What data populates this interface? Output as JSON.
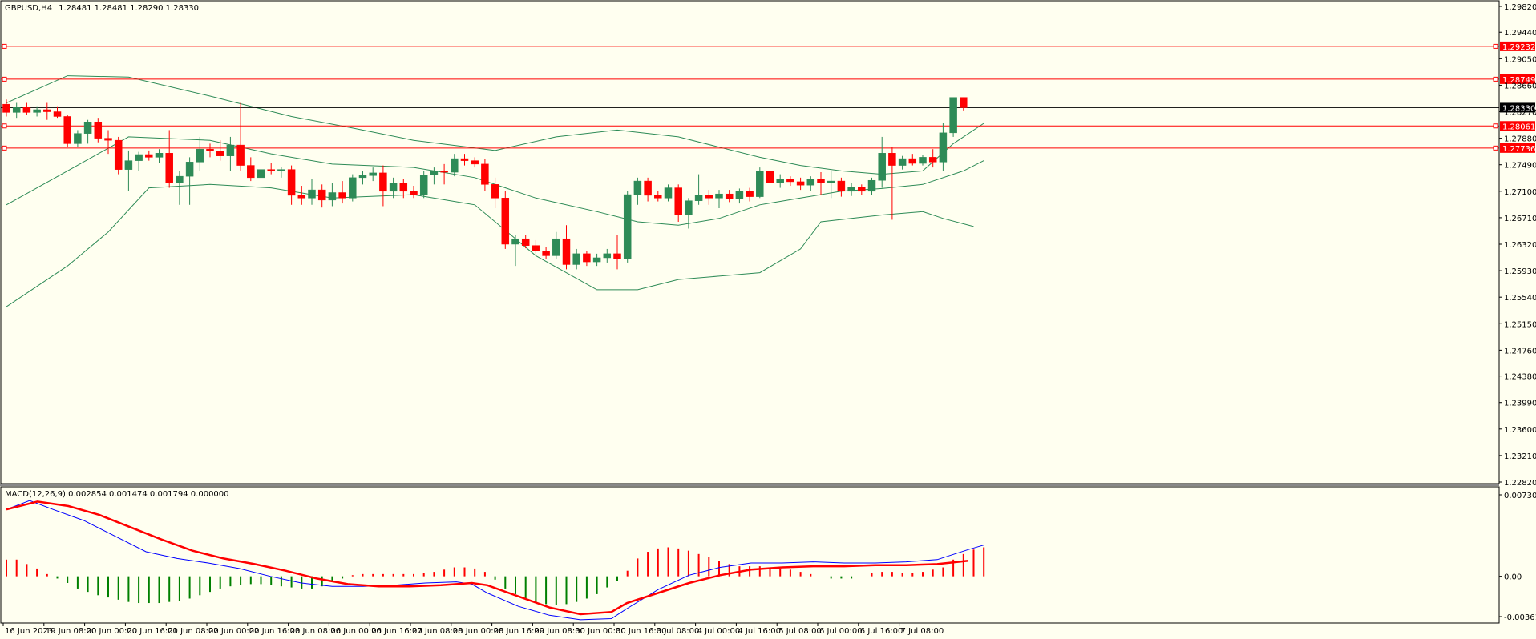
{
  "header": {
    "symbol": "GBPUSD,H4",
    "ohlc": "1.28481 1.28481 1.28290 1.28330"
  },
  "colors": {
    "background": "#fffff0",
    "bull": "#2e8b57",
    "bear": "#ff0000",
    "band": "#2e8b57",
    "level_line": "#ff0000",
    "price_line": "#000000",
    "macd_main": "#0000ff",
    "macd_signal": "#ff0000"
  },
  "chart_data": {
    "type": "candlestick",
    "symbol": "GBPUSD",
    "timeframe": "H4",
    "price_axis": {
      "ylim": [
        1.2282,
        1.2982
      ],
      "ticks": [
        "1.29820",
        "1.29440",
        "1.29050",
        "1.28660",
        "1.28270",
        "1.27880",
        "1.27490",
        "1.27100",
        "1.26710",
        "1.26320",
        "1.25930",
        "1.25540",
        "1.25150",
        "1.24760",
        "1.24380",
        "1.23990",
        "1.23600",
        "1.23210",
        "1.22820"
      ]
    },
    "time_labels": [
      {
        "label": "16 Jun 2023",
        "index": 0
      },
      {
        "label": "19 Jun 08:00",
        "index": 4
      },
      {
        "label": "20 Jun 00:00",
        "index": 8
      },
      {
        "label": "20 Jun 16:00",
        "index": 12
      },
      {
        "label": "21 Jun 08:00",
        "index": 16
      },
      {
        "label": "22 Jun 00:00",
        "index": 20
      },
      {
        "label": "22 Jun 16:00",
        "index": 24
      },
      {
        "label": "23 Jun 08:00",
        "index": 28
      },
      {
        "label": "26 Jun 00:00",
        "index": 32
      },
      {
        "label": "26 Jun 16:00",
        "index": 36
      },
      {
        "label": "27 Jun 08:00",
        "index": 40
      },
      {
        "label": "28 Jun 00:00",
        "index": 44
      },
      {
        "label": "28 Jun 16:00",
        "index": 48
      },
      {
        "label": "29 Jun 08:00",
        "index": 52
      },
      {
        "label": "30 Jun 00:00",
        "index": 56
      },
      {
        "label": "30 Jun 16:00",
        "index": 60
      },
      {
        "label": "3 Jul 08:00",
        "index": 64
      },
      {
        "label": "4 Jul 00:00",
        "index": 68
      },
      {
        "label": "4 Jul 16:00",
        "index": 72
      },
      {
        "label": "5 Jul 08:00",
        "index": 76
      },
      {
        "label": "6 Jul 00:00",
        "index": 80
      },
      {
        "label": "6 Jul 16:00",
        "index": 84
      },
      {
        "label": "7 Jul 08:00",
        "index": 88
      }
    ],
    "candles": [
      [
        1.2838,
        1.2845,
        1.282,
        1.2826
      ],
      [
        1.2826,
        1.284,
        1.2818,
        1.2834
      ],
      [
        1.2834,
        1.284,
        1.2822,
        1.2826
      ],
      [
        1.2826,
        1.2835,
        1.282,
        1.283
      ],
      [
        1.283,
        1.284,
        1.2815,
        1.2827
      ],
      [
        1.2827,
        1.2835,
        1.2818,
        1.282
      ],
      [
        1.282,
        1.2822,
        1.2775,
        1.278
      ],
      [
        1.278,
        1.28,
        1.2775,
        1.2795
      ],
      [
        1.2795,
        1.2815,
        1.278,
        1.2812
      ],
      [
        1.2812,
        1.2818,
        1.2782,
        1.2788
      ],
      [
        1.2788,
        1.28,
        1.2765,
        1.2785
      ],
      [
        1.2785,
        1.279,
        1.2735,
        1.2742
      ],
      [
        1.2742,
        1.277,
        1.271,
        1.2755
      ],
      [
        1.2755,
        1.2768,
        1.274,
        1.2764
      ],
      [
        1.2764,
        1.277,
        1.2755,
        1.276
      ],
      [
        1.276,
        1.2772,
        1.2752,
        1.2766
      ],
      [
        1.2766,
        1.28,
        1.2715,
        1.2722
      ],
      [
        1.2722,
        1.274,
        1.269,
        1.2732
      ],
      [
        1.2732,
        1.276,
        1.269,
        1.2753
      ],
      [
        1.2753,
        1.279,
        1.274,
        1.2772
      ],
      [
        1.2772,
        1.278,
        1.276,
        1.2769
      ],
      [
        1.2769,
        1.2785,
        1.2755,
        1.2762
      ],
      [
        1.2762,
        1.279,
        1.274,
        1.2778
      ],
      [
        1.2778,
        1.284,
        1.274,
        1.2748
      ],
      [
        1.2748,
        1.276,
        1.2725,
        1.273
      ],
      [
        1.273,
        1.2748,
        1.2725,
        1.2742
      ],
      [
        1.2742,
        1.2752,
        1.2735,
        1.274
      ],
      [
        1.274,
        1.2746,
        1.273,
        1.2742
      ],
      [
        1.2742,
        1.2748,
        1.269,
        1.2704
      ],
      [
        1.2704,
        1.2718,
        1.269,
        1.27
      ],
      [
        1.27,
        1.2728,
        1.269,
        1.2712
      ],
      [
        1.2712,
        1.272,
        1.2686,
        1.2697
      ],
      [
        1.2697,
        1.2722,
        1.2688,
        1.2708
      ],
      [
        1.2708,
        1.2725,
        1.2692,
        1.27
      ],
      [
        1.27,
        1.2735,
        1.2695,
        1.273
      ],
      [
        1.273,
        1.274,
        1.272,
        1.2733
      ],
      [
        1.2733,
        1.2745,
        1.2725,
        1.2737
      ],
      [
        1.2737,
        1.2748,
        1.2688,
        1.271
      ],
      [
        1.271,
        1.273,
        1.27,
        1.2722
      ],
      [
        1.2722,
        1.2728,
        1.27,
        1.271
      ],
      [
        1.271,
        1.2718,
        1.27,
        1.2705
      ],
      [
        1.2705,
        1.274,
        1.27,
        1.2734
      ],
      [
        1.2734,
        1.2745,
        1.272,
        1.274
      ],
      [
        1.274,
        1.275,
        1.272,
        1.2738
      ],
      [
        1.2738,
        1.2765,
        1.2732,
        1.2758
      ],
      [
        1.2758,
        1.2765,
        1.2748,
        1.2755
      ],
      [
        1.2755,
        1.276,
        1.2745,
        1.275
      ],
      [
        1.275,
        1.2758,
        1.271,
        1.272
      ],
      [
        1.272,
        1.273,
        1.2685,
        1.27
      ],
      [
        1.27,
        1.271,
        1.2625,
        1.2632
      ],
      [
        1.2632,
        1.2645,
        1.26,
        1.264
      ],
      [
        1.264,
        1.2645,
        1.2626,
        1.263
      ],
      [
        1.263,
        1.2638,
        1.2618,
        1.2622
      ],
      [
        1.2622,
        1.2628,
        1.261,
        1.2615
      ],
      [
        1.2615,
        1.265,
        1.261,
        1.264
      ],
      [
        1.264,
        1.266,
        1.2595,
        1.2602
      ],
      [
        1.2602,
        1.2625,
        1.2595,
        1.2618
      ],
      [
        1.2618,
        1.2622,
        1.26,
        1.2606
      ],
      [
        1.2606,
        1.2618,
        1.26,
        1.2612
      ],
      [
        1.2612,
        1.2625,
        1.2605,
        1.2618
      ],
      [
        1.2618,
        1.2645,
        1.2595,
        1.261
      ],
      [
        1.261,
        1.271,
        1.2605,
        1.2705
      ],
      [
        1.2705,
        1.273,
        1.269,
        1.2725
      ],
      [
        1.2725,
        1.273,
        1.2695,
        1.2704
      ],
      [
        1.2704,
        1.271,
        1.2695,
        1.27
      ],
      [
        1.27,
        1.272,
        1.2695,
        1.2715
      ],
      [
        1.2715,
        1.272,
        1.2665,
        1.2675
      ],
      [
        1.2675,
        1.27,
        1.2655,
        1.2696
      ],
      [
        1.2696,
        1.2735,
        1.269,
        1.2704
      ],
      [
        1.2704,
        1.2712,
        1.269,
        1.27
      ],
      [
        1.27,
        1.2712,
        1.2685,
        1.2706
      ],
      [
        1.2706,
        1.2712,
        1.2694,
        1.2699
      ],
      [
        1.2699,
        1.2714,
        1.2692,
        1.271
      ],
      [
        1.271,
        1.2715,
        1.2695,
        1.2702
      ],
      [
        1.2702,
        1.2745,
        1.27,
        1.274
      ],
      [
        1.274,
        1.2745,
        1.272,
        1.2722
      ],
      [
        1.2722,
        1.2735,
        1.2715,
        1.2728
      ],
      [
        1.2728,
        1.2732,
        1.2718,
        1.2724
      ],
      [
        1.2724,
        1.273,
        1.2712,
        1.2719
      ],
      [
        1.2719,
        1.2732,
        1.271,
        1.2728
      ],
      [
        1.2728,
        1.2738,
        1.2705,
        1.2722
      ],
      [
        1.2722,
        1.274,
        1.27,
        1.2725
      ],
      [
        1.2725,
        1.273,
        1.2702,
        1.271
      ],
      [
        1.271,
        1.2722,
        1.2703,
        1.2716
      ],
      [
        1.2716,
        1.272,
        1.2705,
        1.271
      ],
      [
        1.271,
        1.273,
        1.2705,
        1.2726
      ],
      [
        1.2726,
        1.279,
        1.2715,
        1.2766
      ],
      [
        1.2766,
        1.2775,
        1.2668,
        1.2748
      ],
      [
        1.2748,
        1.2762,
        1.2742,
        1.2758
      ],
      [
        1.2758,
        1.2765,
        1.2748,
        1.2751
      ],
      [
        1.2751,
        1.2763,
        1.2748,
        1.276
      ],
      [
        1.276,
        1.2772,
        1.2745,
        1.2753
      ],
      [
        1.2753,
        1.281,
        1.274,
        1.2796
      ],
      [
        1.2796,
        1.2848,
        1.279,
        1.2848
      ],
      [
        1.2848,
        1.2848,
        1.2829,
        1.2833
      ]
    ],
    "bollinger": {
      "upper": [
        [
          0,
          1.284
        ],
        [
          6,
          1.288
        ],
        [
          12,
          1.2878
        ],
        [
          20,
          1.285
        ],
        [
          28,
          1.282
        ],
        [
          34,
          1.2803
        ],
        [
          40,
          1.2785
        ],
        [
          48,
          1.277
        ],
        [
          54,
          1.279
        ],
        [
          60,
          1.28
        ],
        [
          66,
          1.279
        ],
        [
          70,
          1.2775
        ],
        [
          74,
          1.276
        ],
        [
          78,
          1.2748
        ],
        [
          82,
          1.274
        ],
        [
          86,
          1.2735
        ],
        [
          90,
          1.274
        ],
        [
          93,
          1.278
        ],
        [
          96,
          1.281
        ]
      ],
      "middle": [
        [
          0,
          1.269
        ],
        [
          6,
          1.274
        ],
        [
          12,
          1.279
        ],
        [
          20,
          1.2785
        ],
        [
          26,
          1.2765
        ],
        [
          32,
          1.275
        ],
        [
          40,
          1.2745
        ],
        [
          46,
          1.273
        ],
        [
          52,
          1.27
        ],
        [
          58,
          1.268
        ],
        [
          62,
          1.2665
        ],
        [
          66,
          1.266
        ],
        [
          70,
          1.267
        ],
        [
          74,
          1.269
        ],
        [
          78,
          1.27
        ],
        [
          82,
          1.271
        ],
        [
          86,
          1.2714
        ],
        [
          90,
          1.272
        ],
        [
          94,
          1.274
        ],
        [
          96,
          1.2755
        ]
      ],
      "lower": [
        [
          0,
          1.254
        ],
        [
          6,
          1.26
        ],
        [
          10,
          1.265
        ],
        [
          14,
          1.2715
        ],
        [
          20,
          1.272
        ],
        [
          26,
          1.2715
        ],
        [
          32,
          1.27
        ],
        [
          40,
          1.2705
        ],
        [
          46,
          1.269
        ],
        [
          52,
          1.2615
        ],
        [
          58,
          1.2565
        ],
        [
          62,
          1.2565
        ],
        [
          66,
          1.258
        ],
        [
          70,
          1.2585
        ],
        [
          74,
          1.259
        ],
        [
          78,
          1.2625
        ],
        [
          80,
          1.2665
        ],
        [
          86,
          1.2675
        ],
        [
          90,
          1.268
        ],
        [
          92,
          1.267
        ],
        [
          95,
          1.2658
        ]
      ]
    },
    "levels": [
      {
        "label": "1.29232",
        "value": 1.29232
      },
      {
        "label": "1.28749",
        "value": 1.28749
      },
      {
        "label": "1.28061",
        "value": 1.28061
      },
      {
        "label": "1.27736",
        "value": 1.27736
      }
    ],
    "current_price": {
      "label": "1.28330",
      "value": 1.2833
    },
    "macd": {
      "label": "MACD(12,26,9) 0.002854 0.001474 0.001794 0.000000",
      "ylim": [
        -0.003619,
        0.007307
      ],
      "ticks": [
        "0.007307",
        "0.00",
        "-0.003619"
      ],
      "histogram": [
        0.0015,
        0.0015,
        0.0011,
        0.0007,
        0.0002,
        -0.0002,
        -0.0006,
        -0.0011,
        -0.0014,
        -0.0017,
        -0.0019,
        -0.0021,
        -0.0023,
        -0.0024,
        -0.0024,
        -0.0024,
        -0.0023,
        -0.0022,
        -0.002,
        -0.0017,
        -0.0014,
        -0.0011,
        -0.0009,
        -0.0008,
        -0.0007,
        -0.0007,
        -0.0008,
        -0.0009,
        -0.001,
        -0.0011,
        -0.0011,
        -0.0009,
        -0.0005,
        -0.0002,
        0.0001,
        0.0002,
        0.0002,
        0.0002,
        0.0002,
        0.0002,
        0.0002,
        0.0003,
        0.0004,
        0.0006,
        0.0008,
        0.0008,
        0.0007,
        0.0004,
        -0.0003,
        -0.0011,
        -0.0016,
        -0.002,
        -0.0023,
        -0.0025,
        -0.0026,
        -0.0025,
        -0.0023,
        -0.002,
        -0.0016,
        -0.001,
        -0.0004,
        0.0005,
        0.0016,
        0.0022,
        0.0025,
        0.0026,
        0.0025,
        0.0023,
        0.002,
        0.0017,
        0.0014,
        0.0011,
        0.0009,
        0.0009,
        0.0009,
        0.0008,
        0.0007,
        0.0006,
        0.0004,
        0.0002,
        0.0,
        -0.0002,
        -0.0002,
        -0.0002,
        0.0,
        0.0003,
        0.0004,
        0.0004,
        0.0003,
        0.0003,
        0.0004,
        0.0006,
        0.0008,
        0.0015,
        0.002,
        0.0024,
        0.0026
      ],
      "signal": [
        [
          0,
          0.006
        ],
        [
          4,
          0.0067
        ],
        [
          8,
          0.0063
        ],
        [
          12,
          0.0055
        ],
        [
          16,
          0.0044
        ],
        [
          20,
          0.0033
        ],
        [
          24,
          0.0023
        ],
        [
          28,
          0.0016
        ],
        [
          32,
          0.0011
        ],
        [
          36,
          0.0005
        ],
        [
          40,
          -0.0002
        ],
        [
          44,
          -0.0007
        ],
        [
          48,
          -0.0009
        ],
        [
          52,
          -0.0009
        ],
        [
          56,
          -0.0008
        ],
        [
          60,
          -0.0006
        ],
        [
          62,
          -0.0008
        ],
        [
          66,
          -0.0018
        ],
        [
          70,
          -0.0028
        ],
        [
          74,
          -0.0034
        ],
        [
          78,
          -0.0032
        ],
        [
          80,
          -0.0024
        ],
        [
          84,
          -0.0015
        ],
        [
          88,
          -0.0006
        ],
        [
          92,
          0.0001
        ],
        [
          96,
          0.0006
        ],
        [
          100,
          0.0008
        ],
        [
          104,
          0.0009
        ],
        [
          108,
          0.0009
        ],
        [
          112,
          0.001
        ],
        [
          116,
          0.001
        ],
        [
          120,
          0.0011
        ],
        [
          124,
          0.0014
        ]
      ],
      "main": [
        [
          0,
          0.006
        ],
        [
          3,
          0.0068
        ],
        [
          6,
          0.006
        ],
        [
          10,
          0.005
        ],
        [
          14,
          0.0036
        ],
        [
          18,
          0.0022
        ],
        [
          22,
          0.0016
        ],
        [
          26,
          0.0012
        ],
        [
          30,
          0.0007
        ],
        [
          34,
          0.0
        ],
        [
          38,
          -0.0006
        ],
        [
          42,
          -0.0009
        ],
        [
          46,
          -0.0009
        ],
        [
          50,
          -0.0008
        ],
        [
          54,
          -0.0006
        ],
        [
          58,
          -0.0005
        ],
        [
          60,
          -0.0007
        ],
        [
          62,
          -0.0015
        ],
        [
          66,
          -0.0027
        ],
        [
          70,
          -0.0035
        ],
        [
          74,
          -0.0039
        ],
        [
          78,
          -0.0038
        ],
        [
          80,
          -0.0029
        ],
        [
          84,
          -0.0012
        ],
        [
          88,
          0.0001
        ],
        [
          92,
          0.0008
        ],
        [
          96,
          0.0012
        ],
        [
          100,
          0.0012
        ],
        [
          104,
          0.0013
        ],
        [
          108,
          0.0012
        ],
        [
          112,
          0.0012
        ],
        [
          116,
          0.0013
        ],
        [
          120,
          0.0015
        ],
        [
          124,
          0.0024
        ],
        [
          126,
          0.0028
        ]
      ]
    }
  }
}
